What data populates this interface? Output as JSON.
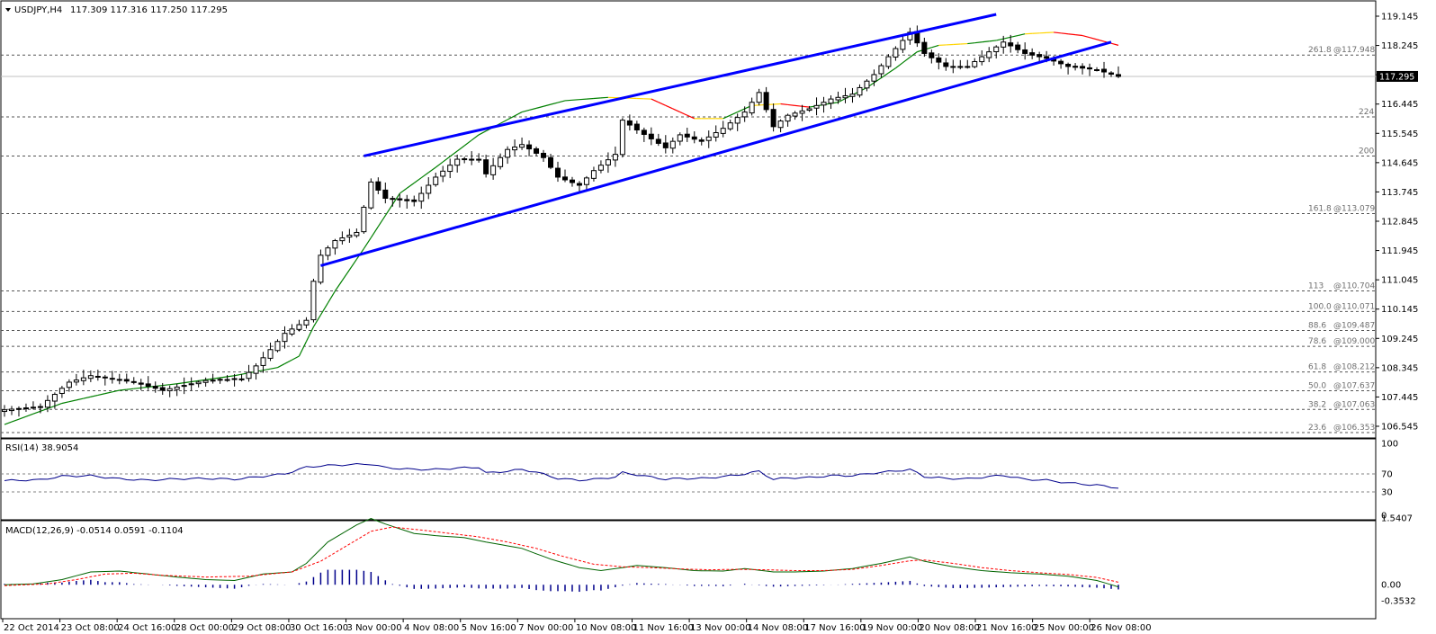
{
  "header": {
    "symbol_label": "USDJPY,H4",
    "ohlc_label": "117.309 117.316 117.250 117.295"
  },
  "colors": {
    "channel": "#0000ff",
    "ma_up": "#008000",
    "ma_down": "#ff0000",
    "ma_flat": "#ffd400",
    "rsi_line": "#00008b",
    "macd_line": "#006400",
    "macd_signal": "#ff0000",
    "macd_hist": "#00008b",
    "grid": "#555555"
  },
  "chart_data": [
    {
      "type": "candlestick",
      "panel": "price",
      "ylim": [
        106.545,
        119.145
      ],
      "yticks": [
        "119.145",
        "118.245",
        "117.345",
        "116.445",
        "115.545",
        "114.645",
        "113.745",
        "112.845",
        "111.945",
        "111.045",
        "110.145",
        "109.245",
        "108.345",
        "107.445",
        "106.545"
      ],
      "current_price": "117.295",
      "xticks": [
        "22 Oct 2014",
        "23 Oct 08:00",
        "24 Oct 16:00",
        "28 Oct 00:00",
        "29 Oct 08:00",
        "30 Oct 16:00",
        "3 Nov 00:00",
        "4 Nov 08:00",
        "5 Nov 16:00",
        "7 Nov 00:00",
        "10 Nov 08:00",
        "11 Nov 16:00",
        "13 Nov 00:00",
        "14 Nov 08:00",
        "17 Nov 16:00",
        "19 Nov 00:00",
        "20 Nov 08:00",
        "21 Nov 16:00",
        "25 Nov 00:00",
        "26 Nov 08:00"
      ],
      "fib_levels": [
        {
          "value": 117.95,
          "label": "261.8",
          "price_label": "@117.948"
        },
        {
          "value": 116.05,
          "label": "224",
          "price_label": ""
        },
        {
          "value": 114.85,
          "label": "200",
          "price_label": ""
        },
        {
          "value": 113.079,
          "label": "161.8",
          "price_label": "@113.079"
        },
        {
          "value": 110.704,
          "label": "113",
          "price_label": "@110.704"
        },
        {
          "value": 110.071,
          "label": "100.0",
          "price_label": "@110.071"
        },
        {
          "value": 109.487,
          "label": "88.6",
          "price_label": "@109.487"
        },
        {
          "value": 109.0,
          "label": "78.6",
          "price_label": "@109.000"
        },
        {
          "value": 108.212,
          "label": "61.8",
          "price_label": "@108.212"
        },
        {
          "value": 107.637,
          "label": "50.0",
          "price_label": "@107.637"
        },
        {
          "value": 107.063,
          "label": "38.2",
          "price_label": "@107.063"
        },
        {
          "value": 106.353,
          "label": "23.6",
          "price_label": "@106.353"
        }
      ],
      "channel": {
        "upper": [
          [
            50,
            114.85
          ],
          [
            138,
            119.2
          ]
        ],
        "lower": [
          [
            44,
            111.48
          ],
          [
            154,
            118.35
          ]
        ]
      },
      "close_anchors": [
        [
          0,
          107.05
        ],
        [
          5,
          107.15
        ],
        [
          9,
          107.9
        ],
        [
          12,
          108.1
        ],
        [
          18,
          107.9
        ],
        [
          22,
          107.65
        ],
        [
          28,
          107.95
        ],
        [
          33,
          108.0
        ],
        [
          35,
          108.4
        ],
        [
          39,
          109.4
        ],
        [
          42,
          109.8
        ],
        [
          43,
          111.0
        ],
        [
          44,
          111.8
        ],
        [
          46,
          112.25
        ],
        [
          49,
          112.5
        ],
        [
          51,
          114.05
        ],
        [
          53,
          113.55
        ],
        [
          57,
          113.45
        ],
        [
          60,
          114.2
        ],
        [
          63,
          114.75
        ],
        [
          66,
          114.75
        ],
        [
          67,
          114.3
        ],
        [
          70,
          115.05
        ],
        [
          72,
          115.2
        ],
        [
          75,
          114.8
        ],
        [
          77,
          114.2
        ],
        [
          80,
          113.95
        ],
        [
          82,
          114.4
        ],
        [
          85,
          114.9
        ],
        [
          86,
          115.95
        ],
        [
          88,
          115.65
        ],
        [
          92,
          115.1
        ],
        [
          94,
          115.5
        ],
        [
          97,
          115.3
        ],
        [
          100,
          115.7
        ],
        [
          103,
          116.2
        ],
        [
          105,
          116.8
        ],
        [
          107,
          115.75
        ],
        [
          109,
          116.1
        ],
        [
          112,
          116.3
        ],
        [
          115,
          116.6
        ],
        [
          118,
          116.75
        ],
        [
          121,
          117.35
        ],
        [
          123,
          117.9
        ],
        [
          126,
          118.65
        ],
        [
          128,
          118.0
        ],
        [
          131,
          117.6
        ],
        [
          134,
          117.6
        ],
        [
          137,
          118.05
        ],
        [
          139,
          118.35
        ],
        [
          142,
          118.0
        ],
        [
          145,
          117.85
        ],
        [
          148,
          117.6
        ],
        [
          152,
          117.5
        ],
        [
          155,
          117.295
        ]
      ],
      "ma_anchors": [
        [
          0,
          106.6
        ],
        [
          8,
          107.25
        ],
        [
          16,
          107.65
        ],
        [
          24,
          107.85
        ],
        [
          32,
          108.1
        ],
        [
          38,
          108.35
        ],
        [
          41,
          108.7
        ],
        [
          43,
          109.6
        ],
        [
          46,
          110.7
        ],
        [
          50,
          112.0
        ],
        [
          55,
          113.7
        ],
        [
          60,
          114.5
        ],
        [
          66,
          115.5
        ],
        [
          72,
          116.2
        ],
        [
          78,
          116.55
        ],
        [
          84,
          116.65
        ],
        [
          90,
          116.6
        ],
        [
          96,
          116.0
        ],
        [
          100,
          116.0
        ],
        [
          104,
          116.4
        ],
        [
          108,
          116.45
        ],
        [
          112,
          116.35
        ],
        [
          116,
          116.5
        ],
        [
          120,
          116.95
        ],
        [
          124,
          117.55
        ],
        [
          127,
          118.05
        ],
        [
          130,
          118.25
        ],
        [
          134,
          118.3
        ],
        [
          138,
          118.4
        ],
        [
          142,
          118.6
        ],
        [
          146,
          118.65
        ],
        [
          150,
          118.55
        ],
        [
          155,
          118.25
        ]
      ]
    },
    {
      "type": "line",
      "panel": "rsi",
      "label": "RSI(14) 38.9054",
      "ylim": [
        0,
        100
      ],
      "levels": [
        70,
        30
      ],
      "yticks": [
        "100",
        "70",
        "30",
        "0"
      ],
      "anchors": [
        [
          0,
          55
        ],
        [
          5,
          57
        ],
        [
          8,
          65
        ],
        [
          12,
          66
        ],
        [
          16,
          59
        ],
        [
          20,
          56
        ],
        [
          24,
          59
        ],
        [
          28,
          60
        ],
        [
          32,
          58
        ],
        [
          35,
          63
        ],
        [
          39,
          70
        ],
        [
          42,
          85
        ],
        [
          44,
          88
        ],
        [
          47,
          90
        ],
        [
          51,
          92
        ],
        [
          53,
          84
        ],
        [
          57,
          80
        ],
        [
          60,
          80
        ],
        [
          63,
          83
        ],
        [
          66,
          85
        ],
        [
          67,
          72
        ],
        [
          70,
          76
        ],
        [
          72,
          80
        ],
        [
          74,
          74
        ],
        [
          77,
          60
        ],
        [
          80,
          56
        ],
        [
          82,
          58
        ],
        [
          85,
          63
        ],
        [
          86,
          73
        ],
        [
          88,
          68
        ],
        [
          92,
          58
        ],
        [
          94,
          60
        ],
        [
          97,
          60
        ],
        [
          100,
          64
        ],
        [
          103,
          70
        ],
        [
          105,
          76
        ],
        [
          107,
          58
        ],
        [
          109,
          61
        ],
        [
          112,
          62
        ],
        [
          115,
          66
        ],
        [
          118,
          66
        ],
        [
          121,
          72
        ],
        [
          123,
          75
        ],
        [
          126,
          80
        ],
        [
          128,
          64
        ],
        [
          131,
          60
        ],
        [
          134,
          59
        ],
        [
          137,
          64
        ],
        [
          139,
          67
        ],
        [
          142,
          58
        ],
        [
          145,
          56
        ],
        [
          148,
          50
        ],
        [
          152,
          45
        ],
        [
          155,
          39
        ]
      ]
    },
    {
      "type": "line",
      "panel": "macd",
      "label": "MACD(12,26,9) -0.0514 0.0591 -0.1104",
      "ylim": [
        -0.3532,
        1.5407
      ],
      "yticks": [
        "1.5407",
        "0.00",
        "-0.3532"
      ],
      "main_anchors": [
        [
          0,
          0.0
        ],
        [
          4,
          0.02
        ],
        [
          8,
          0.12
        ],
        [
          12,
          0.3
        ],
        [
          16,
          0.32
        ],
        [
          20,
          0.25
        ],
        [
          24,
          0.18
        ],
        [
          28,
          0.12
        ],
        [
          32,
          0.1
        ],
        [
          36,
          0.25
        ],
        [
          40,
          0.3
        ],
        [
          42,
          0.5
        ],
        [
          45,
          1.0
        ],
        [
          49,
          1.4
        ],
        [
          51,
          1.55
        ],
        [
          53,
          1.42
        ],
        [
          57,
          1.2
        ],
        [
          60,
          1.15
        ],
        [
          64,
          1.1
        ],
        [
          67,
          1.0
        ],
        [
          72,
          0.85
        ],
        [
          76,
          0.6
        ],
        [
          80,
          0.4
        ],
        [
          83,
          0.33
        ],
        [
          86,
          0.4
        ],
        [
          88,
          0.45
        ],
        [
          92,
          0.4
        ],
        [
          96,
          0.33
        ],
        [
          100,
          0.32
        ],
        [
          103,
          0.38
        ],
        [
          107,
          0.3
        ],
        [
          110,
          0.3
        ],
        [
          114,
          0.32
        ],
        [
          118,
          0.38
        ],
        [
          122,
          0.5
        ],
        [
          126,
          0.65
        ],
        [
          128,
          0.55
        ],
        [
          132,
          0.42
        ],
        [
          136,
          0.33
        ],
        [
          140,
          0.28
        ],
        [
          144,
          0.25
        ],
        [
          148,
          0.2
        ],
        [
          152,
          0.1
        ],
        [
          155,
          -0.05
        ]
      ],
      "signal_anchors": [
        [
          0,
          -0.02
        ],
        [
          6,
          0.02
        ],
        [
          10,
          0.12
        ],
        [
          14,
          0.25
        ],
        [
          18,
          0.27
        ],
        [
          22,
          0.22
        ],
        [
          28,
          0.18
        ],
        [
          34,
          0.2
        ],
        [
          40,
          0.3
        ],
        [
          44,
          0.55
        ],
        [
          48,
          0.95
        ],
        [
          51,
          1.25
        ],
        [
          54,
          1.35
        ],
        [
          58,
          1.28
        ],
        [
          62,
          1.2
        ],
        [
          66,
          1.12
        ],
        [
          70,
          1.0
        ],
        [
          74,
          0.85
        ],
        [
          78,
          0.65
        ],
        [
          82,
          0.48
        ],
        [
          86,
          0.42
        ],
        [
          90,
          0.4
        ],
        [
          94,
          0.37
        ],
        [
          98,
          0.35
        ],
        [
          102,
          0.36
        ],
        [
          106,
          0.35
        ],
        [
          110,
          0.33
        ],
        [
          114,
          0.33
        ],
        [
          118,
          0.36
        ],
        [
          122,
          0.45
        ],
        [
          126,
          0.56
        ],
        [
          128,
          0.58
        ],
        [
          132,
          0.5
        ],
        [
          136,
          0.4
        ],
        [
          140,
          0.33
        ],
        [
          144,
          0.28
        ],
        [
          148,
          0.24
        ],
        [
          152,
          0.17
        ],
        [
          155,
          0.06
        ]
      ],
      "hist_note": "histogram = main - signal"
    }
  ]
}
